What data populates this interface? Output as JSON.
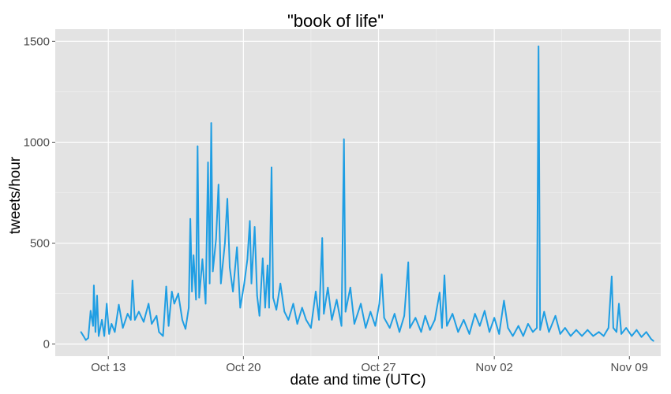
{
  "chart_data": {
    "type": "line",
    "title": "\"book of life\"",
    "xlabel": "date and time (UTC)",
    "ylabel": "tweets/hour",
    "ylim": [
      -60,
      1560
    ],
    "xlim": [
      "2014-10-10T06:00",
      "2014-11-10T15:00"
    ],
    "grid": true,
    "x_ticks": [
      {
        "date": "2014-10-13",
        "label": "Oct 13"
      },
      {
        "date": "2014-10-20",
        "label": "Oct 20"
      },
      {
        "date": "2014-10-27",
        "label": "Oct 27"
      },
      {
        "date": "2014-11-02",
        "label": "Nov 02"
      },
      {
        "date": "2014-11-09",
        "label": "Nov 09"
      }
    ],
    "y_ticks": [
      0,
      500,
      1000,
      1500
    ],
    "line_color": "#1f9ee3",
    "panel_color": "#e3e3e3",
    "series": [
      {
        "points": [
          [
            "2014-10-11T14:00",
            60
          ],
          [
            "2014-10-11T17:00",
            40
          ],
          [
            "2014-10-11T20:00",
            20
          ],
          [
            "2014-10-11T23:00",
            30
          ],
          [
            "2014-10-12T02:00",
            165
          ],
          [
            "2014-10-12T05:00",
            90
          ],
          [
            "2014-10-12T06:00",
            290
          ],
          [
            "2014-10-12T08:00",
            60
          ],
          [
            "2014-10-12T10:00",
            240
          ],
          [
            "2014-10-12T12:00",
            40
          ],
          [
            "2014-10-12T16:00",
            120
          ],
          [
            "2014-10-12T19:00",
            40
          ],
          [
            "2014-10-12T22:00",
            200
          ],
          [
            "2014-10-13T01:00",
            50
          ],
          [
            "2014-10-13T04:00",
            100
          ],
          [
            "2014-10-13T08:00",
            60
          ],
          [
            "2014-10-13T13:00",
            195
          ],
          [
            "2014-10-13T18:00",
            80
          ],
          [
            "2014-10-14T00:00",
            150
          ],
          [
            "2014-10-14T04:00",
            120
          ],
          [
            "2014-10-14T06:00",
            315
          ],
          [
            "2014-10-14T09:00",
            120
          ],
          [
            "2014-10-14T14:00",
            160
          ],
          [
            "2014-10-14T20:00",
            110
          ],
          [
            "2014-10-15T02:00",
            200
          ],
          [
            "2014-10-15T06:00",
            100
          ],
          [
            "2014-10-15T12:00",
            140
          ],
          [
            "2014-10-15T15:00",
            60
          ],
          [
            "2014-10-15T20:00",
            40
          ],
          [
            "2014-10-16T00:00",
            285
          ],
          [
            "2014-10-16T03:00",
            90
          ],
          [
            "2014-10-16T07:00",
            260
          ],
          [
            "2014-10-16T10:00",
            200
          ],
          [
            "2014-10-16T15:00",
            250
          ],
          [
            "2014-10-16T20:00",
            120
          ],
          [
            "2014-10-17T00:00",
            75
          ],
          [
            "2014-10-17T04:00",
            180
          ],
          [
            "2014-10-17T06:00",
            620
          ],
          [
            "2014-10-17T08:00",
            260
          ],
          [
            "2014-10-17T10:00",
            440
          ],
          [
            "2014-10-17T13:00",
            220
          ],
          [
            "2014-10-17T15:00",
            980
          ],
          [
            "2014-10-17T17:00",
            230
          ],
          [
            "2014-10-17T21:00",
            420
          ],
          [
            "2014-10-18T01:00",
            200
          ],
          [
            "2014-10-18T04:00",
            900
          ],
          [
            "2014-10-18T06:00",
            300
          ],
          [
            "2014-10-18T08:00",
            1095
          ],
          [
            "2014-10-18T10:00",
            360
          ],
          [
            "2014-10-18T14:00",
            520
          ],
          [
            "2014-10-18T17:00",
            790
          ],
          [
            "2014-10-18T20:00",
            300
          ],
          [
            "2014-10-19T01:00",
            500
          ],
          [
            "2014-10-19T04:00",
            720
          ],
          [
            "2014-10-19T07:00",
            380
          ],
          [
            "2014-10-19T11:00",
            260
          ],
          [
            "2014-10-19T16:00",
            480
          ],
          [
            "2014-10-19T20:00",
            180
          ],
          [
            "2014-10-20T01:00",
            300
          ],
          [
            "2014-10-20T05:00",
            420
          ],
          [
            "2014-10-20T08:00",
            610
          ],
          [
            "2014-10-20T10:00",
            300
          ],
          [
            "2014-10-20T14:00",
            580
          ],
          [
            "2014-10-20T17:00",
            240
          ],
          [
            "2014-10-20T20:00",
            140
          ],
          [
            "2014-10-21T00:00",
            425
          ],
          [
            "2014-10-21T03:00",
            180
          ],
          [
            "2014-10-21T06:00",
            390
          ],
          [
            "2014-10-21T08:00",
            180
          ],
          [
            "2014-10-21T11:00",
            875
          ],
          [
            "2014-10-21T13:00",
            230
          ],
          [
            "2014-10-21T17:00",
            170
          ],
          [
            "2014-10-21T22:00",
            300
          ],
          [
            "2014-10-22T03:00",
            160
          ],
          [
            "2014-10-22T08:00",
            120
          ],
          [
            "2014-10-22T14:00",
            200
          ],
          [
            "2014-10-22T19:00",
            100
          ],
          [
            "2014-10-23T01:00",
            180
          ],
          [
            "2014-10-23T06:00",
            120
          ],
          [
            "2014-10-23T12:00",
            80
          ],
          [
            "2014-10-23T18:00",
            260
          ],
          [
            "2014-10-23T22:00",
            120
          ],
          [
            "2014-10-24T02:00",
            525
          ],
          [
            "2014-10-24T04:00",
            150
          ],
          [
            "2014-10-24T09:00",
            280
          ],
          [
            "2014-10-24T14:00",
            120
          ],
          [
            "2014-10-24T20:00",
            220
          ],
          [
            "2014-10-25T02:00",
            90
          ],
          [
            "2014-10-25T05:00",
            1015
          ],
          [
            "2014-10-25T07:00",
            160
          ],
          [
            "2014-10-25T13:00",
            280
          ],
          [
            "2014-10-25T18:00",
            100
          ],
          [
            "2014-10-26T02:00",
            200
          ],
          [
            "2014-10-26T08:00",
            80
          ],
          [
            "2014-10-26T14:00",
            160
          ],
          [
            "2014-10-26T20:00",
            90
          ],
          [
            "2014-10-27T01:00",
            200
          ],
          [
            "2014-10-27T04:00",
            345
          ],
          [
            "2014-10-27T07:00",
            130
          ],
          [
            "2014-10-27T14:00",
            80
          ],
          [
            "2014-10-27T20:00",
            150
          ],
          [
            "2014-10-28T02:00",
            60
          ],
          [
            "2014-10-28T08:00",
            140
          ],
          [
            "2014-10-28T13:00",
            405
          ],
          [
            "2014-10-28T15:00",
            80
          ],
          [
            "2014-10-28T22:00",
            130
          ],
          [
            "2014-10-29T05:00",
            60
          ],
          [
            "2014-10-29T10:00",
            140
          ],
          [
            "2014-10-29T16:00",
            70
          ],
          [
            "2014-10-29T22:00",
            120
          ],
          [
            "2014-10-30T04:00",
            255
          ],
          [
            "2014-10-30T07:00",
            80
          ],
          [
            "2014-10-30T10:00",
            340
          ],
          [
            "2014-10-30T13:00",
            90
          ],
          [
            "2014-10-30T20:00",
            150
          ],
          [
            "2014-10-31T03:00",
            60
          ],
          [
            "2014-10-31T10:00",
            120
          ],
          [
            "2014-10-31T17:00",
            50
          ],
          [
            "2014-11-01T00:00",
            150
          ],
          [
            "2014-11-01T06:00",
            90
          ],
          [
            "2014-11-01T12:00",
            165
          ],
          [
            "2014-11-01T18:00",
            60
          ],
          [
            "2014-11-02T00:00",
            130
          ],
          [
            "2014-11-02T06:00",
            50
          ],
          [
            "2014-11-02T12:00",
            215
          ],
          [
            "2014-11-02T17:00",
            80
          ],
          [
            "2014-11-02T23:00",
            40
          ],
          [
            "2014-11-03T06:00",
            90
          ],
          [
            "2014-11-03T12:00",
            40
          ],
          [
            "2014-11-03T18:00",
            100
          ],
          [
            "2014-11-04T00:00",
            60
          ],
          [
            "2014-11-04T05:00",
            80
          ],
          [
            "2014-11-04T07:00",
            1475
          ],
          [
            "2014-11-04T09:00",
            70
          ],
          [
            "2014-11-04T14:00",
            160
          ],
          [
            "2014-11-04T20:00",
            60
          ],
          [
            "2014-11-05T01:00",
            110
          ],
          [
            "2014-11-05T04:00",
            140
          ],
          [
            "2014-11-05T10:00",
            50
          ],
          [
            "2014-11-05T16:00",
            80
          ],
          [
            "2014-11-05T23:00",
            40
          ],
          [
            "2014-11-06T06:00",
            70
          ],
          [
            "2014-11-06T13:00",
            40
          ],
          [
            "2014-11-06T20:00",
            70
          ],
          [
            "2014-11-07T03:00",
            40
          ],
          [
            "2014-11-07T10:00",
            60
          ],
          [
            "2014-11-07T16:00",
            40
          ],
          [
            "2014-11-07T22:00",
            80
          ],
          [
            "2014-11-08T02:00",
            335
          ],
          [
            "2014-11-08T04:00",
            80
          ],
          [
            "2014-11-08T08:00",
            60
          ],
          [
            "2014-11-08T11:00",
            200
          ],
          [
            "2014-11-08T14:00",
            50
          ],
          [
            "2014-11-08T20:00",
            80
          ],
          [
            "2014-11-09T03:00",
            40
          ],
          [
            "2014-11-09T09:00",
            70
          ],
          [
            "2014-11-09T15:00",
            35
          ],
          [
            "2014-11-09T21:00",
            60
          ],
          [
            "2014-11-10T03:00",
            25
          ],
          [
            "2014-11-10T06:00",
            15
          ]
        ]
      }
    ]
  }
}
